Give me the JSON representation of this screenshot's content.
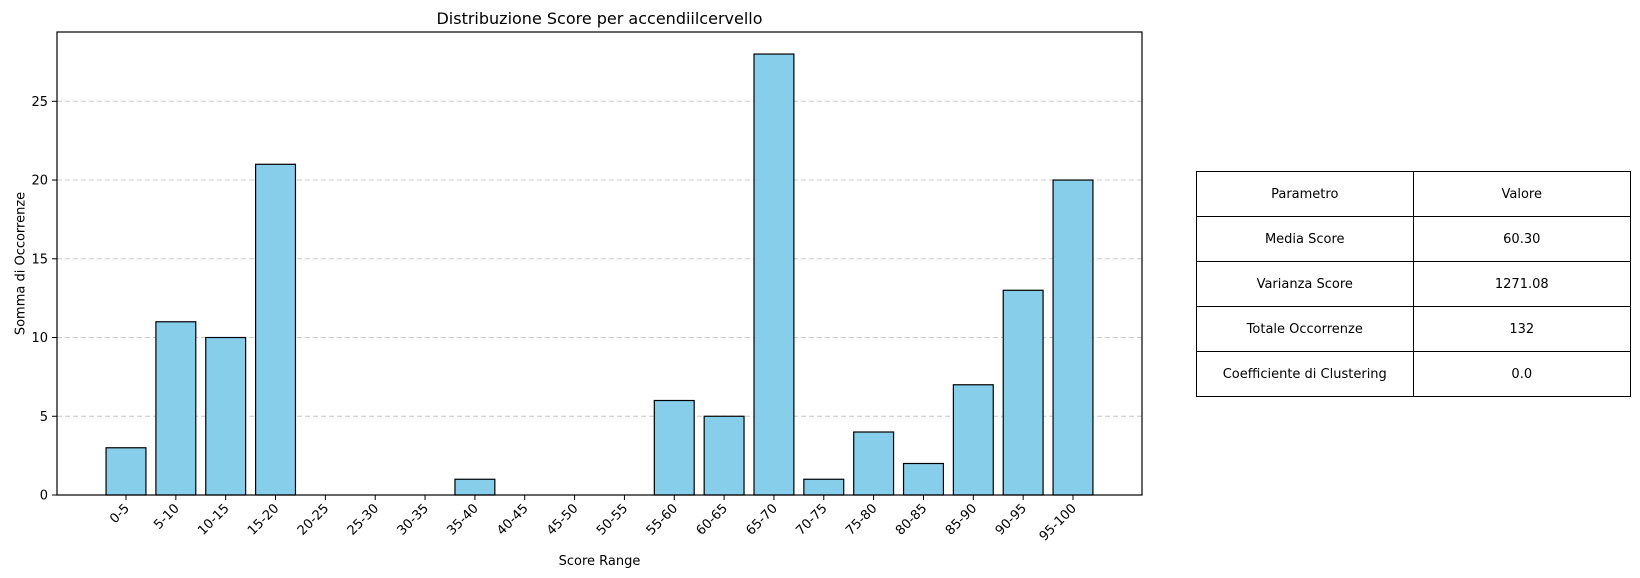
{
  "chart_data": {
    "type": "bar",
    "title": "Distribuzione Score per accendiilcervello",
    "xlabel": "Score Range",
    "ylabel": "Somma di Occorrenze",
    "categories": [
      "0-5",
      "5-10",
      "10-15",
      "15-20",
      "20-25",
      "25-30",
      "30-35",
      "35-40",
      "40-45",
      "45-50",
      "50-55",
      "55-60",
      "60-65",
      "65-70",
      "70-75",
      "75-80",
      "80-85",
      "85-90",
      "90-95",
      "95-100"
    ],
    "values": [
      3,
      11,
      10,
      21,
      0,
      0,
      0,
      1,
      0,
      0,
      0,
      6,
      5,
      28,
      1,
      4,
      2,
      7,
      13,
      20
    ],
    "ylim": [
      0,
      29.4
    ],
    "yticks": [
      0,
      5,
      10,
      15,
      20,
      25
    ],
    "grid": "y-dashed",
    "bar_color": "#87ceeb",
    "bar_edge_color": "#000000"
  },
  "table": {
    "header": {
      "param": "Parametro",
      "value": "Valore"
    },
    "rows": [
      {
        "param": "Media Score",
        "value": "60.30"
      },
      {
        "param": "Varianza Score",
        "value": "1271.08"
      },
      {
        "param": "Totale Occorrenze",
        "value": "132"
      },
      {
        "param": "Coefficiente di Clustering",
        "value": "0.0"
      }
    ]
  }
}
